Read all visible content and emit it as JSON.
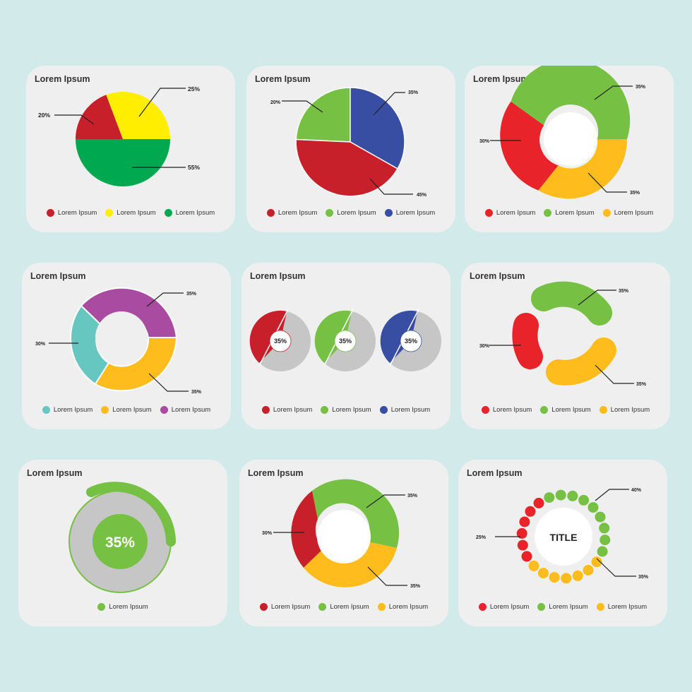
{
  "colors": {
    "red": "#c8202a",
    "red2": "#e8232a",
    "yellow": "#ffee00",
    "green": "#00a94f",
    "green2": "#76c043",
    "blue": "#384ea3",
    "orange": "#ffbc1c",
    "teal": "#66c7c0",
    "purple": "#a84ba1",
    "gray": "#c6c6c6"
  },
  "chart_data": [
    {
      "type": "pie",
      "title": "Lorem Ipsum",
      "slices": [
        {
          "label": "Lorem Ipsum",
          "value": 20,
          "text": "20%",
          "color": "#c8202a"
        },
        {
          "label": "Lorem Ipsum",
          "value": 25,
          "text": "25%",
          "color": "#ffee00"
        },
        {
          "label": "Lorem Ipsum",
          "value": 55,
          "text": "55%",
          "color": "#00a94f"
        }
      ],
      "legend": "bottom"
    },
    {
      "type": "pie",
      "title": "Lorem Ipsum",
      "slices": [
        {
          "label": "Lorem Ipsum",
          "value": 45,
          "text": "45%",
          "color": "#c8202a"
        },
        {
          "label": "Lorem Ipsum",
          "value": 20,
          "text": "20%",
          "color": "#76c043"
        },
        {
          "label": "Lorem Ipsum",
          "value": 35,
          "text": "35%",
          "color": "#384ea3"
        }
      ],
      "legend": "bottom"
    },
    {
      "type": "pie",
      "title": "Lorem Ipsum",
      "donut": true,
      "slices": [
        {
          "label": "Lorem Ipsum",
          "value": 30,
          "text": "30%",
          "color": "#e8232a"
        },
        {
          "label": "Lorem Ipsum",
          "value": 35,
          "text": "35%",
          "color": "#76c043"
        },
        {
          "label": "Lorem Ipsum",
          "value": 35,
          "text": "35%",
          "color": "#ffbc1c"
        }
      ],
      "legend": "bottom"
    },
    {
      "type": "pie",
      "title": "Lorem Ipsum",
      "donut": true,
      "slices": [
        {
          "label": "Lorem Ipsum",
          "value": 30,
          "text": "30%",
          "color": "#66c7c0"
        },
        {
          "label": "Lorem Ipsum",
          "value": 35,
          "text": "35%",
          "color": "#ffbc1c"
        },
        {
          "label": "Lorem Ipsum",
          "value": 35,
          "text": "35%",
          "color": "#a84ba1"
        }
      ],
      "legend": "bottom"
    },
    {
      "type": "pie",
      "title": "Lorem Ipsum",
      "gauges": [
        {
          "label": "Lorem Ipsum",
          "value": 35,
          "text": "35%",
          "color": "#c8202a"
        },
        {
          "label": "Lorem Ipsum",
          "value": 35,
          "text": "35%",
          "color": "#76c043"
        },
        {
          "label": "Lorem Ipsum",
          "value": 35,
          "text": "35%",
          "color": "#384ea3"
        }
      ],
      "legend": "bottom"
    },
    {
      "type": "pie",
      "title": "Lorem Ipsum",
      "donut": true,
      "separated": true,
      "slices": [
        {
          "label": "Lorem Ipsum",
          "value": 30,
          "text": "30%",
          "color": "#e8232a"
        },
        {
          "label": "Lorem Ipsum",
          "value": 35,
          "text": "35%",
          "color": "#76c043"
        },
        {
          "label": "Lorem Ipsum",
          "value": 35,
          "text": "35%",
          "color": "#ffbc1c"
        }
      ],
      "legend": "bottom"
    },
    {
      "type": "pie",
      "title": "Lorem Ipsum",
      "progress": {
        "label": "Lorem Ipsum",
        "value": 35,
        "text": "35%",
        "color": "#76c043"
      },
      "legend": "bottom"
    },
    {
      "type": "pie",
      "title": "Lorem Ipsum",
      "donut": true,
      "slices": [
        {
          "label": "Lorem Ipsum",
          "value": 30,
          "text": "30%",
          "color": "#c8202a"
        },
        {
          "label": "Lorem Ipsum",
          "value": 35,
          "text": "35%",
          "color": "#76c043"
        },
        {
          "label": "Lorem Ipsum",
          "value": 35,
          "text": "35%",
          "color": "#ffbc1c"
        }
      ],
      "legend": "bottom"
    },
    {
      "type": "pie",
      "title": "Lorem Ipsum",
      "center_text": "TITLE",
      "dots": true,
      "slices": [
        {
          "label": "Lorem Ipsum",
          "value": 25,
          "text": "25%",
          "color": "#e8232a"
        },
        {
          "label": "Lorem Ipsum",
          "value": 40,
          "text": "40%",
          "color": "#76c043"
        },
        {
          "label": "Lorem Ipsum",
          "value": 35,
          "text": "35%",
          "color": "#ffbc1c"
        }
      ],
      "legend": "bottom"
    }
  ]
}
